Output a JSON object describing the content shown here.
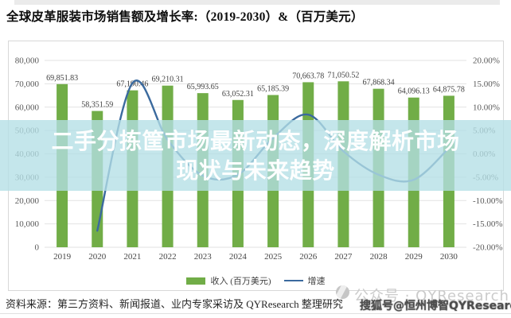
{
  "page": {
    "title": "全球皮革服装市场销售额及增长率:（2019-2030）&（百万美元）"
  },
  "overlay": {
    "line1": "二手分拣筐市场最新动态，深度解析市场",
    "line2": "现状与未来趋势"
  },
  "legend": {
    "revenue_label": "收入 (百万美元)",
    "growth_label": "增速"
  },
  "footer": {
    "source": "资料来源：第三方资料、新闻报道、业内专家采访及 QYResearch 整理研究",
    "watermark_gray": "公众号 · QYResearch",
    "watermark_sohu": "搜狐号@恒州博智QYResearch"
  },
  "colors": {
    "bar": "#71ad47",
    "line": "#3b6a9e",
    "grid": "#e2e2e2",
    "axis_text": "#595959",
    "value_label": "#3f3f3f",
    "year_text": "#444444"
  },
  "chart_data": {
    "type": "bar",
    "title": "全球皮革服装市场销售额及增长率:（2019-2030）&（百万美元）",
    "categories": [
      "2019",
      "2020",
      "2021",
      "2022",
      "2023",
      "2024",
      "2025",
      "2026",
      "2027",
      "2028",
      "2029",
      "2030"
    ],
    "series": [
      {
        "name": "收入 (百万美元)",
        "type": "bar",
        "axis": "left",
        "values": [
          69851.83,
          58351.59,
          67190.46,
          69210.31,
          65993.65,
          63052.31,
          65185.39,
          70663.78,
          71050.52,
          67868.34,
          64096.13,
          64875.78
        ],
        "labels": [
          "69,851.83",
          "58,351.59",
          "67,190.46",
          "69,210.31",
          "65,993.65",
          "63,052.31",
          "65,185.39",
          "70,663.78",
          "71,050.52",
          "67,868.34",
          "64,096.13",
          "64,875.78"
        ]
      },
      {
        "name": "增速",
        "type": "line",
        "axis": "right",
        "values_percent": [
          null,
          -16.46,
          15.15,
          3.01,
          -4.65,
          -4.46,
          3.38,
          8.4,
          0.55,
          -4.48,
          -5.56,
          1.22
        ],
        "note": "percent values estimated from plotted line position (YoY growth)"
      }
    ],
    "left_axis": {
      "min": 0,
      "max": 80000,
      "ticks": [
        "80,000",
        "70,000",
        "60,000",
        "50,000",
        "40,000",
        "30,000",
        "20,000",
        "10,000",
        "0"
      ]
    },
    "right_axis": {
      "min": -20,
      "max": 20,
      "ticks": [
        "20.00%",
        "15.00%",
        "10.00%",
        "5.00%",
        "0.00%",
        "-5.00%",
        "-10.00%",
        "-15.00%",
        "-20.00%"
      ]
    },
    "grid": true,
    "legend_position": "bottom"
  }
}
